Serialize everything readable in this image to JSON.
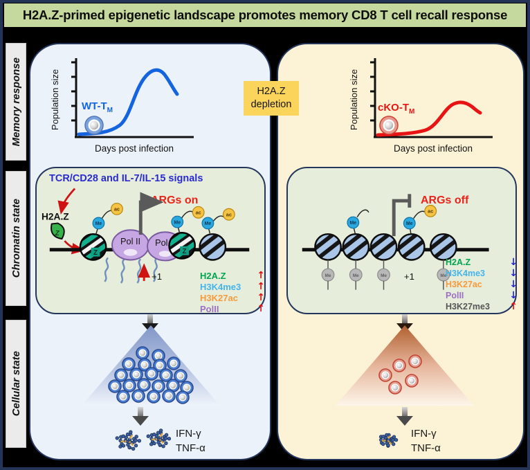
{
  "title": "H2A.Z-primed epigenetic landscape promotes memory CD8 T cell recall response",
  "sidebar": {
    "sections": [
      {
        "label": "Memory response"
      },
      {
        "label": "Chromatin state"
      },
      {
        "label": "Cellular state"
      }
    ]
  },
  "depletion_box": {
    "line1": "H2A.Z",
    "line2": "depletion"
  },
  "marks": {
    "me": "Me",
    "ac": "ac",
    "z": "Z",
    "plus_one": "+1"
  },
  "colors": {
    "title_bg": "#c5d89d",
    "left_panel_bg": "#ebf2fa",
    "right_panel_bg": "#fcf3d6",
    "chromatin_bg": "#e6eedb",
    "depletion_bg": "#fbd45c",
    "wt_curve": "#1464e0",
    "cko_curve": "#e81414",
    "h2az_green": "#00a550",
    "h3k4me3_blue": "#45b4ea",
    "h3k27ac_orange": "#f79a3c",
    "polii_purple": "#9d6fc3",
    "h3k27me3_gray": "#555555",
    "up_arrow_red": "#e01212",
    "down_arrow_blue": "#2222dd"
  },
  "left_panel": {
    "graph": {
      "ylabel": "Population size",
      "xlabel": "Days post infection",
      "curve_label": "WT-T",
      "curve_label_sub": "M"
    },
    "chromatin": {
      "signals": "TCR/CD28 and IL-7/IL-15 signals",
      "h2az_label": "H2A.Z",
      "args_label": "ARGs on",
      "polii_label": "Pol II",
      "legend": [
        {
          "label": "H2A.Z",
          "color": "#00a550",
          "arrow": "↑",
          "arrow_color": "#e01212"
        },
        {
          "label": "H3K4me3",
          "color": "#45b4ea",
          "arrow": "↑",
          "arrow_color": "#e01212"
        },
        {
          "label": "H3K27ac",
          "color": "#f79a3c",
          "arrow": "↑",
          "arrow_color": "#e01212"
        },
        {
          "label": "PolII",
          "color": "#9d6fc3",
          "arrow": "↑",
          "arrow_color": "#e01212"
        }
      ]
    },
    "cellular": {
      "cytokine1": "IFN-γ",
      "cytokine2": "TNF-α"
    }
  },
  "right_panel": {
    "graph": {
      "ylabel": "Population size",
      "xlabel": "Days post infection",
      "curve_label": "cKO-T",
      "curve_label_sub": "M"
    },
    "chromatin": {
      "args_label": "ARGs off",
      "legend": [
        {
          "label": "H2A.Z",
          "color": "#00a550",
          "arrow": "↓",
          "arrow_color": "#2222dd"
        },
        {
          "label": "H3K4me3",
          "color": "#45b4ea",
          "arrow": "↓",
          "arrow_color": "#2222dd"
        },
        {
          "label": "H3K27ac",
          "color": "#f79a3c",
          "arrow": "↓",
          "arrow_color": "#2222dd"
        },
        {
          "label": "PolII",
          "color": "#9d6fc3",
          "arrow": "↓",
          "arrow_color": "#2222dd"
        },
        {
          "label": "H3K27me3",
          "color": "#555555",
          "arrow": "↑",
          "arrow_color": "#e01212"
        }
      ]
    },
    "cellular": {
      "cytokine1": "IFN-γ",
      "cytokine2": "TNF-α"
    }
  }
}
